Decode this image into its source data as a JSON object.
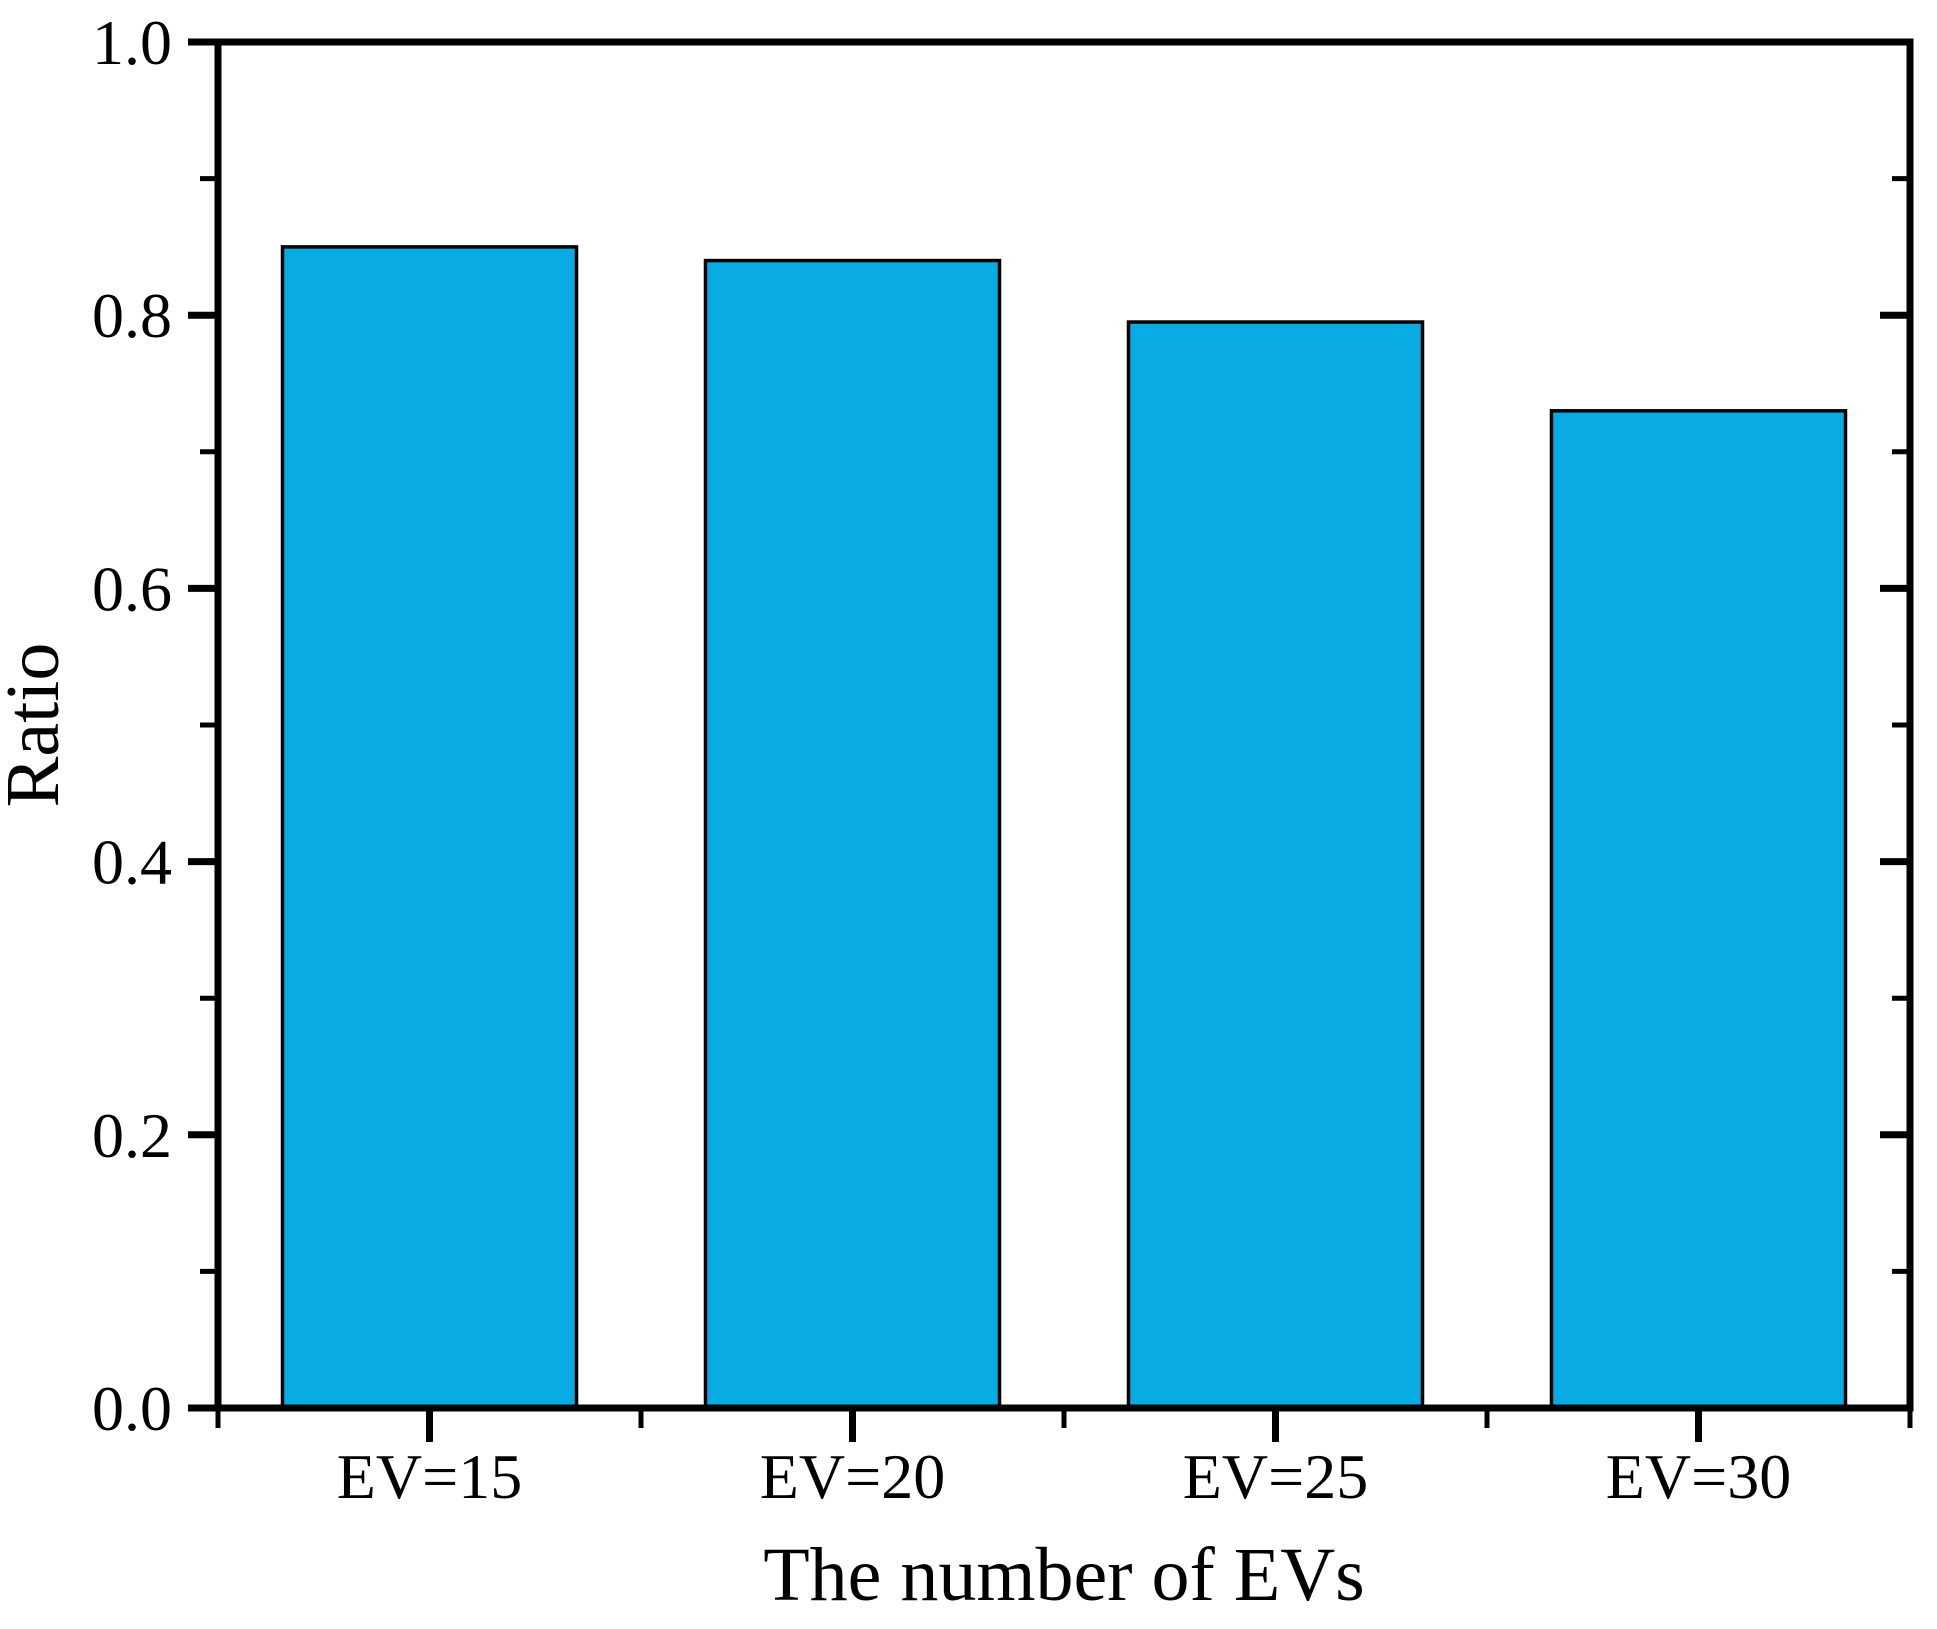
{
  "chart_data": {
    "type": "bar",
    "categories": [
      "EV=15",
      "EV=20",
      "EV=25",
      "EV=30"
    ],
    "values": [
      0.85,
      0.84,
      0.795,
      0.73
    ],
    "xlabel": "The number of EVs",
    "ylabel": "Ratio",
    "ylim": [
      0.0,
      1.0
    ],
    "y_major_ticks": [
      0.0,
      0.2,
      0.4,
      0.6,
      0.8,
      1.0
    ],
    "y_tick_labels": [
      "0.0",
      "0.2",
      "0.4",
      "0.6",
      "0.8",
      "1.0"
    ],
    "y_minor_ticks": [
      0.1,
      0.3,
      0.5,
      0.7,
      0.9
    ],
    "grid": false,
    "legend_position": "none",
    "bar_fill_color": "#09ACE2",
    "bar_border_color": "#000000",
    "axis_color": "#000000",
    "background_color": "#FFFFFF"
  }
}
